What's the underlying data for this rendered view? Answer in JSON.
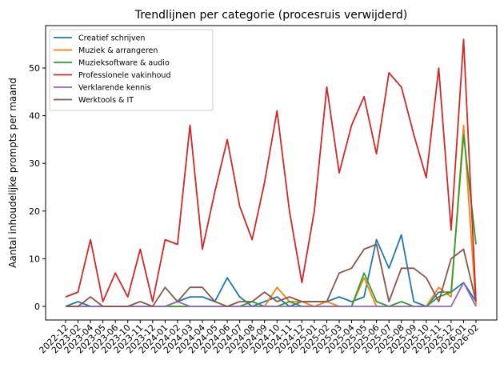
{
  "chart_data": {
    "type": "line",
    "title": "Trendlijnen per categorie (procesruis verwijderd)",
    "xlabel": "",
    "ylabel": "Aantal inhoudelijke prompts per maand",
    "ylim": [
      -2.8,
      58.8
    ],
    "yticks": [
      0,
      10,
      20,
      30,
      40,
      50
    ],
    "grid": false,
    "legend_position": "upper left",
    "x": [
      "2022-12",
      "2023-02",
      "2023-04",
      "2023-05",
      "2023-06",
      "2023-10",
      "2023-11",
      "2023-12",
      "2024-01",
      "2024-02",
      "2024-03",
      "2024-04",
      "2024-05",
      "2024-06",
      "2024-07",
      "2024-08",
      "2024-09",
      "2024-10",
      "2024-11",
      "2024-12",
      "2025-01",
      "2025-02",
      "2025-03",
      "2025-04",
      "2025-05",
      "2025-06",
      "2025-07",
      "2025-08",
      "2025-09",
      "2025-10",
      "2025-11",
      "2025-12",
      "2026-01",
      "2026-02"
    ],
    "series": [
      {
        "name": "Creatief schrijven",
        "color": "#1f77b4",
        "values": [
          0,
          1,
          0,
          0,
          0,
          0,
          0,
          0,
          0,
          1,
          2,
          2,
          1,
          6,
          2,
          0,
          1,
          2,
          0,
          1,
          1,
          1,
          2,
          1,
          2,
          14,
          8,
          15,
          1,
          0,
          3,
          3,
          5,
          1
        ]
      },
      {
        "name": "Muziek & arrangeren",
        "color": "#ff7f0e",
        "values": [
          0,
          0,
          0,
          0,
          0,
          0,
          0,
          0,
          0,
          0,
          0,
          0,
          0,
          0,
          0,
          0,
          0,
          4,
          1,
          1,
          0,
          1,
          0,
          0,
          6,
          0,
          0,
          0,
          0,
          0,
          4,
          2,
          38,
          0
        ]
      },
      {
        "name": "Muzieksoftware & audio",
        "color": "#2ca02c",
        "values": [
          0,
          0,
          0,
          0,
          0,
          0,
          0,
          0,
          0,
          0,
          0,
          0,
          0,
          0,
          0,
          1,
          0,
          0,
          1,
          0,
          0,
          0,
          0,
          0,
          7,
          1,
          0,
          1,
          0,
          0,
          2,
          3,
          36,
          13
        ]
      },
      {
        "name": "Professionele vakinhoud",
        "color": "#d62728",
        "values": [
          2,
          3,
          14,
          1,
          7,
          2,
          12,
          1,
          14,
          13,
          38,
          12,
          24,
          35,
          21,
          14,
          26,
          41,
          20,
          5,
          20,
          46,
          28,
          38,
          44,
          32,
          49,
          46,
          36,
          27,
          50,
          16,
          56,
          1
        ]
      },
      {
        "name": "Verklarende kennis",
        "color": "#9467bd",
        "values": [
          0,
          0,
          0,
          0,
          0,
          0,
          0,
          0,
          0,
          1,
          0,
          0,
          0,
          0,
          0,
          0,
          0,
          0,
          0,
          0,
          0,
          0,
          0,
          0,
          0,
          0,
          0,
          0,
          0,
          0,
          0,
          0,
          5,
          0
        ]
      },
      {
        "name": "Werktools & IT",
        "color": "#8c564b",
        "values": [
          0,
          0,
          2,
          0,
          0,
          0,
          1,
          0,
          4,
          1,
          4,
          4,
          1,
          0,
          1,
          1,
          3,
          1,
          2,
          1,
          1,
          1,
          7,
          8,
          12,
          13,
          1,
          8,
          8,
          6,
          1,
          10,
          12,
          1
        ]
      }
    ]
  }
}
